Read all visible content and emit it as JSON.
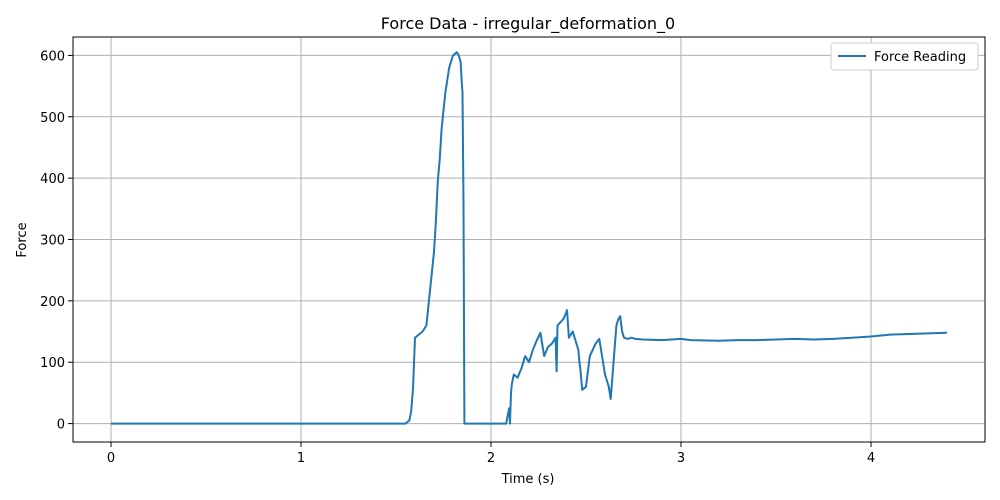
{
  "chart_data": {
    "type": "line",
    "title": "Force Data - irregular_deformation_0",
    "xlabel": "Time (s)",
    "ylabel": "Force",
    "xlim": [
      -0.2,
      4.6
    ],
    "ylim": [
      -30,
      630
    ],
    "xticks": [
      0,
      1,
      2,
      3,
      4
    ],
    "yticks": [
      0,
      100,
      200,
      300,
      400,
      500,
      600
    ],
    "grid": true,
    "legend_position": "top-right",
    "series": [
      {
        "name": "Force Reading",
        "color": "#1f77b4",
        "x": [
          0,
          0.75,
          1.0,
          1.5,
          1.55,
          1.57,
          1.58,
          1.59,
          1.6,
          1.62,
          1.64,
          1.66,
          1.68,
          1.69,
          1.7,
          1.71,
          1.72,
          1.73,
          1.74,
          1.75,
          1.76,
          1.77,
          1.78,
          1.79,
          1.8,
          1.82,
          1.83,
          1.84,
          1.845,
          1.85,
          1.855,
          1.86,
          1.865,
          1.87,
          1.9,
          2.0,
          2.08,
          2.095,
          2.1,
          2.105,
          2.11,
          2.12,
          2.14,
          2.16,
          2.18,
          2.2,
          2.22,
          2.24,
          2.26,
          2.28,
          2.3,
          2.32,
          2.34,
          2.345,
          2.35,
          2.38,
          2.395,
          2.4,
          2.41,
          2.43,
          2.46,
          2.465,
          2.47,
          2.48,
          2.5,
          2.52,
          2.55,
          2.57,
          2.6,
          2.62,
          2.63,
          2.66,
          2.67,
          2.68,
          2.69,
          2.7,
          2.72,
          2.74,
          2.76,
          2.8,
          2.9,
          3.0,
          3.05,
          3.2,
          3.3,
          3.4,
          3.5,
          3.6,
          3.7,
          3.8,
          3.9,
          4.0,
          4.1,
          4.2,
          4.3,
          4.4
        ],
        "y": [
          0,
          0,
          0,
          0,
          0,
          5,
          20,
          60,
          140,
          145,
          150,
          160,
          220,
          250,
          280,
          330,
          395,
          430,
          480,
          510,
          540,
          560,
          580,
          590,
          600,
          605,
          600,
          590,
          560,
          540,
          360,
          0,
          0,
          0,
          0,
          0,
          0,
          25,
          0,
          50,
          65,
          80,
          75,
          90,
          110,
          100,
          120,
          135,
          148,
          110,
          125,
          130,
          140,
          85,
          160,
          170,
          180,
          185,
          140,
          150,
          120,
          100,
          90,
          55,
          60,
          110,
          130,
          138,
          80,
          60,
          40,
          160,
          170,
          175,
          150,
          140,
          138,
          140,
          138,
          137,
          136,
          138,
          136,
          135,
          136,
          136,
          137,
          138,
          137,
          138,
          140,
          142,
          145,
          146,
          147,
          148
        ]
      }
    ]
  }
}
